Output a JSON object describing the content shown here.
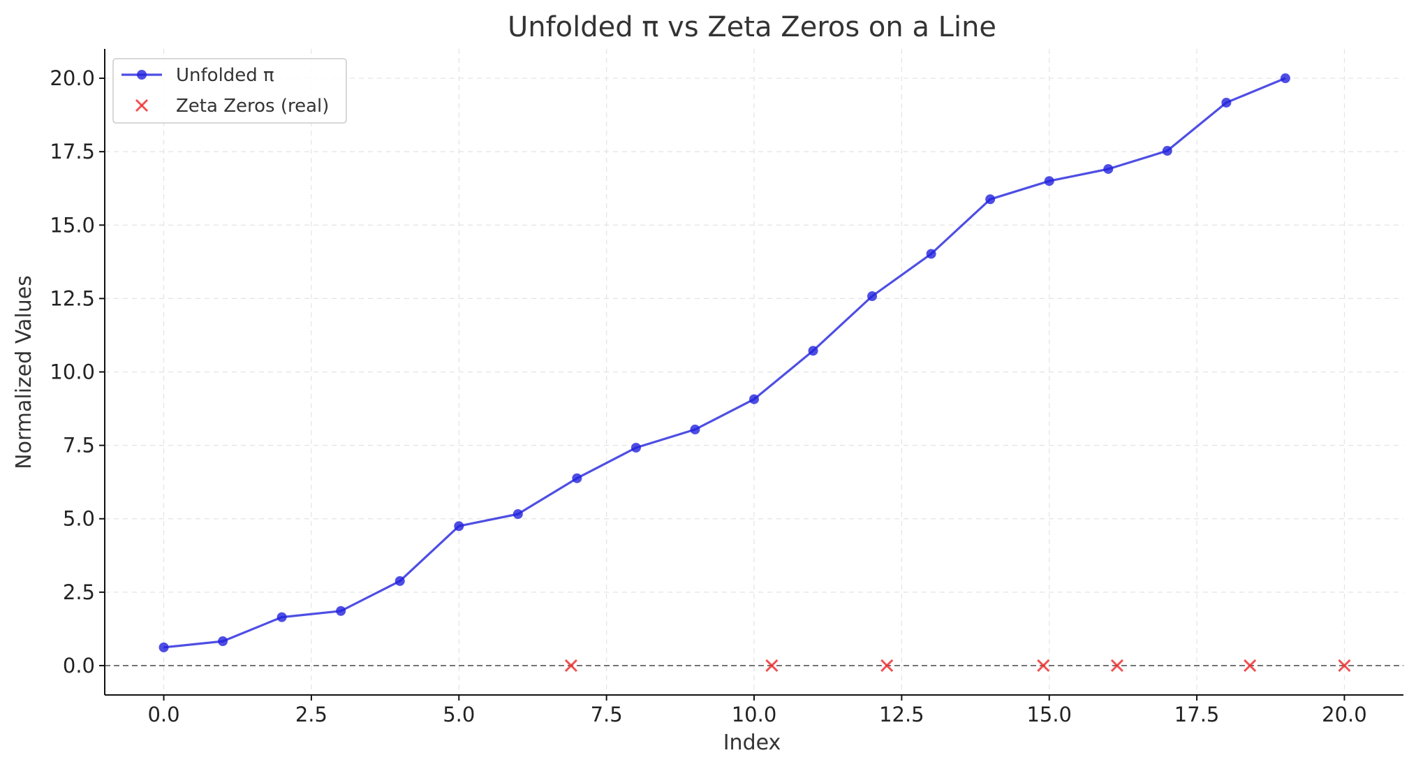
{
  "chart_data": {
    "type": "line",
    "title": "Unfolded π vs Zeta Zeros on a Line",
    "xlabel": "Index",
    "ylabel": "Normalized Values",
    "xlim": [
      -1,
      21.0
    ],
    "ylim": [
      -1.0,
      21.0
    ],
    "xticks": [
      0.0,
      2.5,
      5.0,
      7.5,
      10.0,
      12.5,
      15.0,
      17.5,
      20.0
    ],
    "xtick_labels": [
      "0.0",
      "2.5",
      "5.0",
      "7.5",
      "10.0",
      "12.5",
      "15.0",
      "17.5",
      "20.0"
    ],
    "yticks": [
      0.0,
      2.5,
      5.0,
      7.5,
      10.0,
      12.5,
      15.0,
      17.5,
      20.0
    ],
    "ytick_labels": [
      "0.0",
      "2.5",
      "5.0",
      "7.5",
      "10.0",
      "12.5",
      "15.0",
      "17.5",
      "20.0"
    ],
    "grid": true,
    "legend_position": "top-left",
    "reference_line": {
      "y": 0.0,
      "style": "dashed",
      "color": "#555555"
    },
    "series": [
      {
        "name": "Unfolded π",
        "kind": "line-marker",
        "color": "#2222dd",
        "x": [
          0,
          1,
          2,
          3,
          4,
          5,
          6,
          7,
          8,
          9,
          10,
          11,
          12,
          13,
          14,
          15,
          16,
          17,
          18,
          19
        ],
        "y": [
          0.62,
          0.83,
          1.65,
          1.86,
          2.88,
          4.75,
          5.16,
          6.38,
          7.42,
          8.04,
          9.07,
          10.72,
          12.58,
          14.02,
          15.88,
          16.5,
          16.91,
          17.53,
          19.17,
          20.0
        ]
      },
      {
        "name": "Zeta Zeros (real)",
        "kind": "scatter-x",
        "color": "#ee3333",
        "x": [
          6.9,
          10.3,
          12.25,
          14.9,
          16.15,
          18.4,
          20.0
        ],
        "y": [
          0,
          0,
          0,
          0,
          0,
          0,
          0
        ]
      }
    ]
  }
}
